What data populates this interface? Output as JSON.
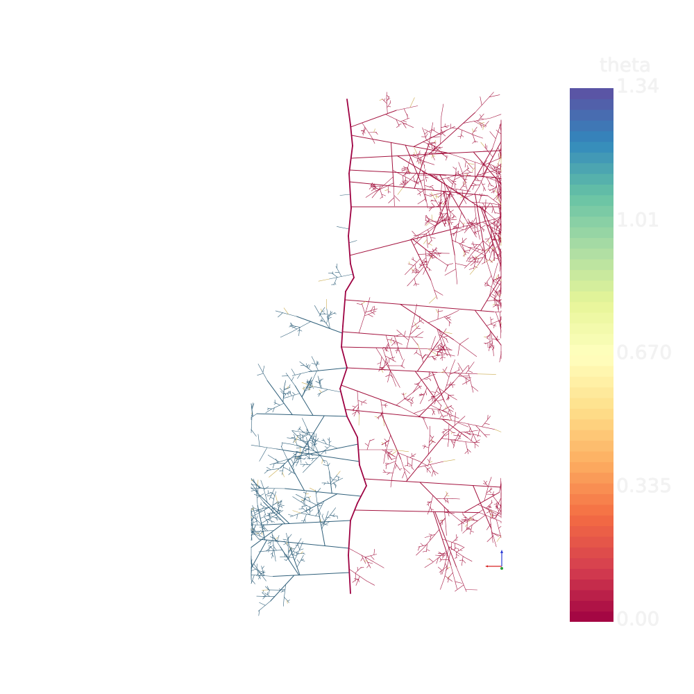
{
  "scene": {
    "colorbar": {
      "title": "theta",
      "range": [
        0.0,
        1.34
      ],
      "ticks": [
        {
          "label": "1.34",
          "value": 1.34
        },
        {
          "label": "1.01",
          "value": 1.005
        },
        {
          "label": "0.670",
          "value": 0.67
        },
        {
          "label": "0.335",
          "value": 0.335
        },
        {
          "label": "0.00",
          "value": 0.0
        }
      ],
      "colormap": "Spectral",
      "colors": [
        "#9e0142",
        "#d53e4f",
        "#f46d43",
        "#fdae61",
        "#fee08b",
        "#ffffbf",
        "#e6f598",
        "#abdda4",
        "#66c2a5",
        "#3288bd",
        "#5e4fa2"
      ]
    },
    "root_colors": {
      "main_root": "#9e0142",
      "right_branches": "#a3123e",
      "left_branches": "#2f5f7a",
      "tips_mixed": "#c9a94a"
    },
    "axes_widget": {
      "x_color": "#d62020",
      "y_color": "#2a9d3a",
      "z_color": "#2b3bd6"
    }
  }
}
